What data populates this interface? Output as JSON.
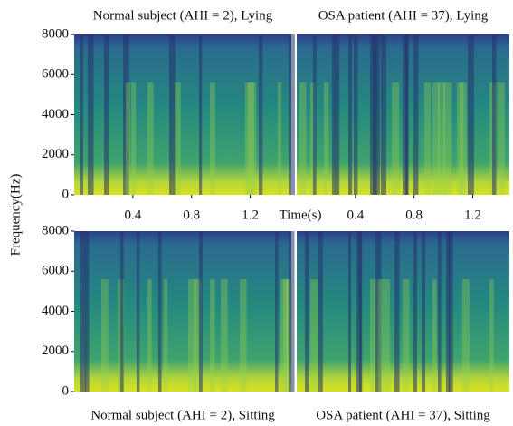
{
  "chart_data": [
    {
      "type": "spectrogram",
      "title": "Normal subject (AHI = 2), Lying",
      "x_label": "Time(s)",
      "y_label": "Frequency(Hz)",
      "xlim": [
        0,
        1.48
      ],
      "xticks": [
        0.4,
        0.8,
        1.2
      ],
      "ylim": [
        0,
        8000
      ],
      "yticks": [
        0,
        2000,
        4000,
        6000,
        8000
      ]
    },
    {
      "type": "spectrogram",
      "title": "OSA patient (AHI = 37), Lying",
      "xlim": [
        0,
        1.45
      ],
      "xticks": [
        0.4,
        0.8,
        1.2
      ]
    },
    {
      "type": "spectrogram",
      "title": "Normal subject (AHI = 2), Sitting",
      "ylim": [
        0,
        8000
      ],
      "yticks": [
        0,
        2000,
        4000,
        6000,
        8000
      ]
    },
    {
      "type": "spectrogram",
      "title": "OSA patient (AHI = 37), Sitting"
    }
  ]
}
